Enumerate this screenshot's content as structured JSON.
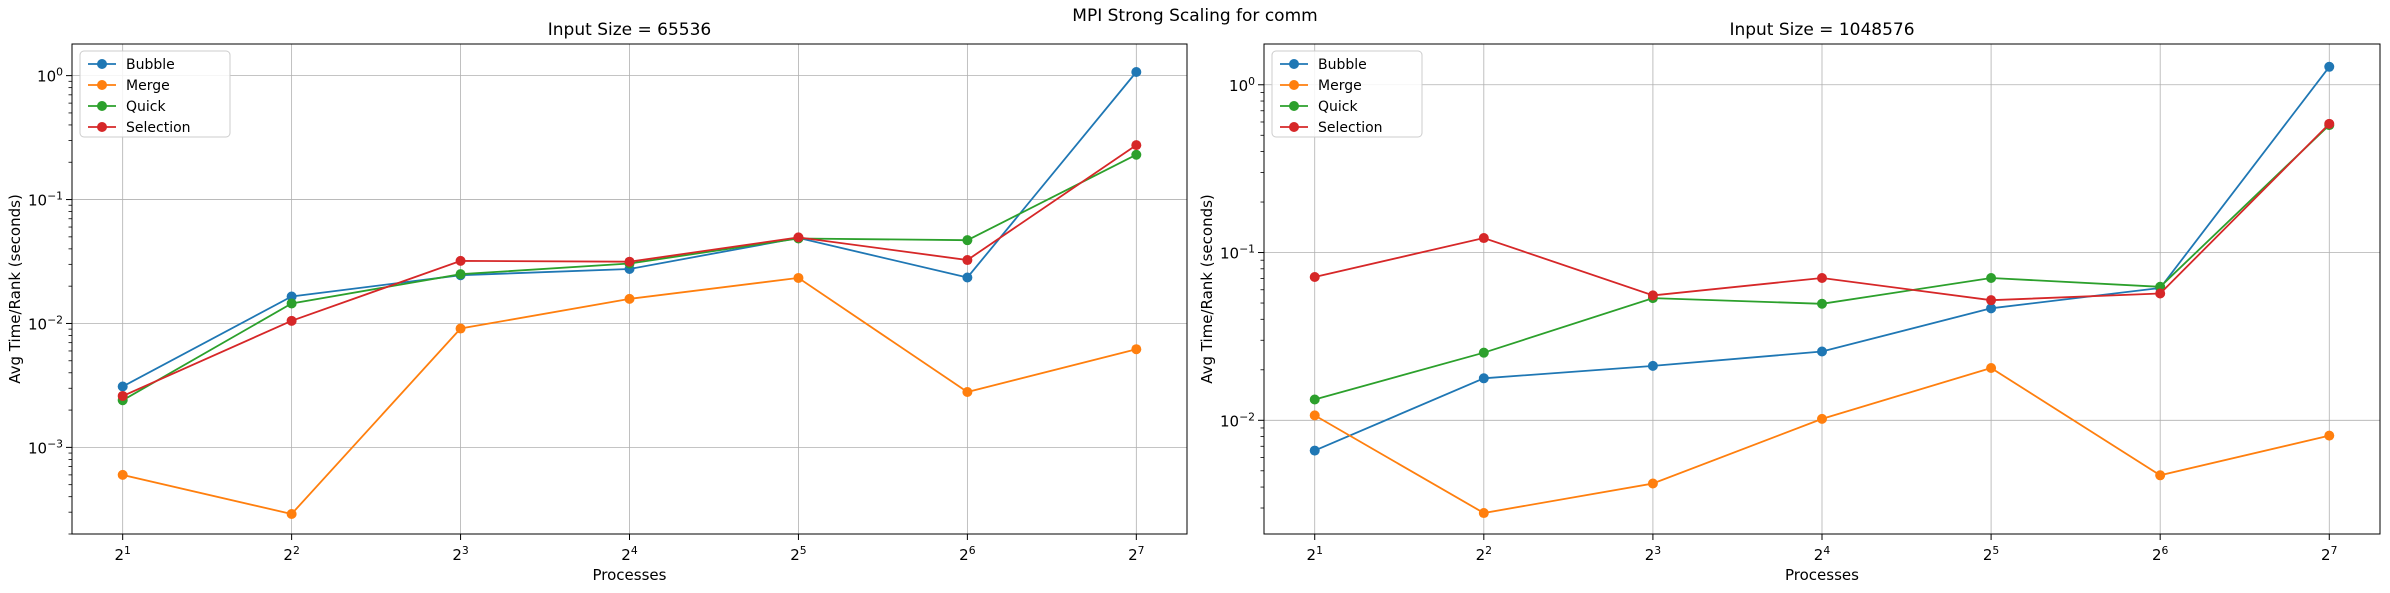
{
  "figure": {
    "title": "MPI Strong Scaling for comm"
  },
  "colors": {
    "Bubble": "#1f77b4",
    "Merge": "#ff7f0e",
    "Quick": "#2ca02c",
    "Selection": "#d62728"
  },
  "chart_data": [
    {
      "type": "line",
      "title": "Input Size = 65536",
      "xlabel": "Processes",
      "ylabel": "Avg Time/Rank (seconds)",
      "xscale": "log2",
      "yscale": "log",
      "x": [
        2,
        4,
        8,
        16,
        32,
        64,
        128
      ],
      "x_tick_labels": [
        {
          "base": "2",
          "exp": "1"
        },
        {
          "base": "2",
          "exp": "2"
        },
        {
          "base": "2",
          "exp": "3"
        },
        {
          "base": "2",
          "exp": "4"
        },
        {
          "base": "2",
          "exp": "5"
        },
        {
          "base": "2",
          "exp": "6"
        },
        {
          "base": "2",
          "exp": "7"
        }
      ],
      "ylim": [
        0.0002,
        1.8
      ],
      "y_ticks": [
        {
          "value": 0.001,
          "base": "10",
          "exp": "−3"
        },
        {
          "value": 0.01,
          "base": "10",
          "exp": "−2"
        },
        {
          "value": 0.1,
          "base": "10",
          "exp": "−1"
        },
        {
          "value": 1,
          "base": "10",
          "exp": "0"
        }
      ],
      "grid": true,
      "legend_position": "top-left",
      "series": [
        {
          "name": "Bubble",
          "values": [
            0.0031,
            0.0165,
            0.0245,
            0.0275,
            0.049,
            0.0235,
            1.07
          ]
        },
        {
          "name": "Merge",
          "values": [
            0.0006,
            0.00029,
            0.0091,
            0.0158,
            0.0233,
            0.0028,
            0.0062
          ]
        },
        {
          "name": "Quick",
          "values": [
            0.0024,
            0.0145,
            0.025,
            0.0305,
            0.0485,
            0.047,
            0.23
          ]
        },
        {
          "name": "Selection",
          "values": [
            0.0026,
            0.0105,
            0.032,
            0.0315,
            0.0495,
            0.0325,
            0.275
          ]
        }
      ]
    },
    {
      "type": "line",
      "title": "Input Size = 1048576",
      "xlabel": "Processes",
      "ylabel": "Avg Time/Rank (seconds)",
      "xscale": "log2",
      "yscale": "log",
      "x": [
        2,
        4,
        8,
        16,
        32,
        64,
        128
      ],
      "x_tick_labels": [
        {
          "base": "2",
          "exp": "1"
        },
        {
          "base": "2",
          "exp": "2"
        },
        {
          "base": "2",
          "exp": "3"
        },
        {
          "base": "2",
          "exp": "4"
        },
        {
          "base": "2",
          "exp": "5"
        },
        {
          "base": "2",
          "exp": "6"
        },
        {
          "base": "2",
          "exp": "7"
        }
      ],
      "ylim": [
        0.0021,
        1.75
      ],
      "y_ticks": [
        {
          "value": 0.01,
          "base": "10",
          "exp": "−2"
        },
        {
          "value": 0.1,
          "base": "10",
          "exp": "−1"
        },
        {
          "value": 1,
          "base": "10",
          "exp": "0"
        }
      ],
      "grid": true,
      "legend_position": "top-left",
      "series": [
        {
          "name": "Bubble",
          "values": [
            0.0066,
            0.0178,
            0.0211,
            0.0257,
            0.0465,
            0.0615,
            1.28
          ]
        },
        {
          "name": "Merge",
          "values": [
            0.0107,
            0.0028,
            0.0042,
            0.0102,
            0.0205,
            0.0047,
            0.0081
          ]
        },
        {
          "name": "Quick",
          "values": [
            0.0133,
            0.0253,
            0.0535,
            0.0495,
            0.0705,
            0.0625,
            0.575
          ]
        },
        {
          "name": "Selection",
          "values": [
            0.0715,
            0.122,
            0.0555,
            0.0705,
            0.052,
            0.057,
            0.585
          ]
        }
      ]
    }
  ]
}
